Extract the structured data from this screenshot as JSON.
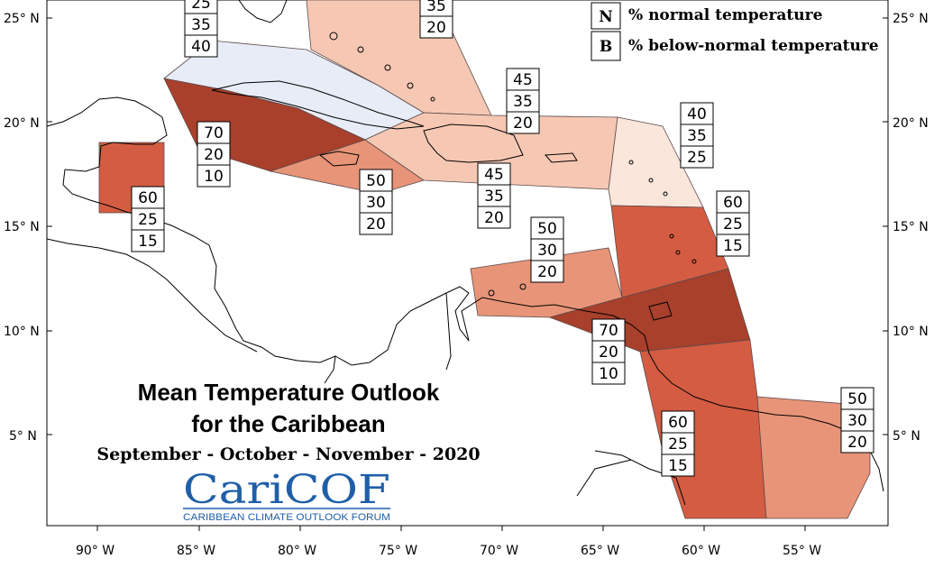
{
  "title_line1": "Mean Temperature Outlook",
  "title_line2": "for the Caribbean",
  "subtitle": "September - October - November - 2020",
  "logo": {
    "text": "CariCOF",
    "tagline": "CARIBBEAN CLIMATE OUTLOOK FORUM",
    "color": "#1f5fa8"
  },
  "legend": [
    {
      "letter": "N",
      "text": "% normal temperature"
    },
    {
      "letter": "B",
      "text": "% below-normal temperature"
    }
  ],
  "lat_ticks": [
    "25° N",
    "20° N",
    "15° N",
    "10° N",
    "5° N"
  ],
  "lon_ticks": [
    "90° W",
    "85° W",
    "80° W",
    "75° W",
    "70° W",
    "65° W",
    "60° W",
    "55° W"
  ],
  "colors": {
    "light_blue": "#e8ecf6",
    "pale_peach": "#fbe6dc",
    "light_salmon": "#f6c8b4",
    "salmon": "#e89478",
    "medium_red": "#d45c42",
    "dark_red": "#a8402c"
  },
  "probability_labels": [
    {
      "id": "bahamas-west",
      "values": [
        "25",
        "35",
        "40"
      ]
    },
    {
      "id": "bahamas-east",
      "values": [
        "35",
        "20"
      ]
    },
    {
      "id": "cuba-south",
      "values": [
        "70",
        "20",
        "10"
      ]
    },
    {
      "id": "belize",
      "values": [
        "60",
        "25",
        "15"
      ]
    },
    {
      "id": "jamaica",
      "values": [
        "50",
        "30",
        "20"
      ]
    },
    {
      "id": "hispaniola",
      "values": [
        "45",
        "35",
        "20"
      ]
    },
    {
      "id": "puerto-rico",
      "values": [
        "45",
        "35",
        "20"
      ]
    },
    {
      "id": "leeward-islands",
      "values": [
        "40",
        "35",
        "25"
      ]
    },
    {
      "id": "windward-islands",
      "values": [
        "60",
        "25",
        "15"
      ]
    },
    {
      "id": "abc-islands",
      "values": [
        "50",
        "30",
        "20"
      ]
    },
    {
      "id": "trinidad",
      "values": [
        "70",
        "20",
        "10"
      ]
    },
    {
      "id": "guyana",
      "values": [
        "60",
        "25",
        "15"
      ]
    },
    {
      "id": "suriname",
      "values": [
        "50",
        "30",
        "20"
      ]
    }
  ]
}
